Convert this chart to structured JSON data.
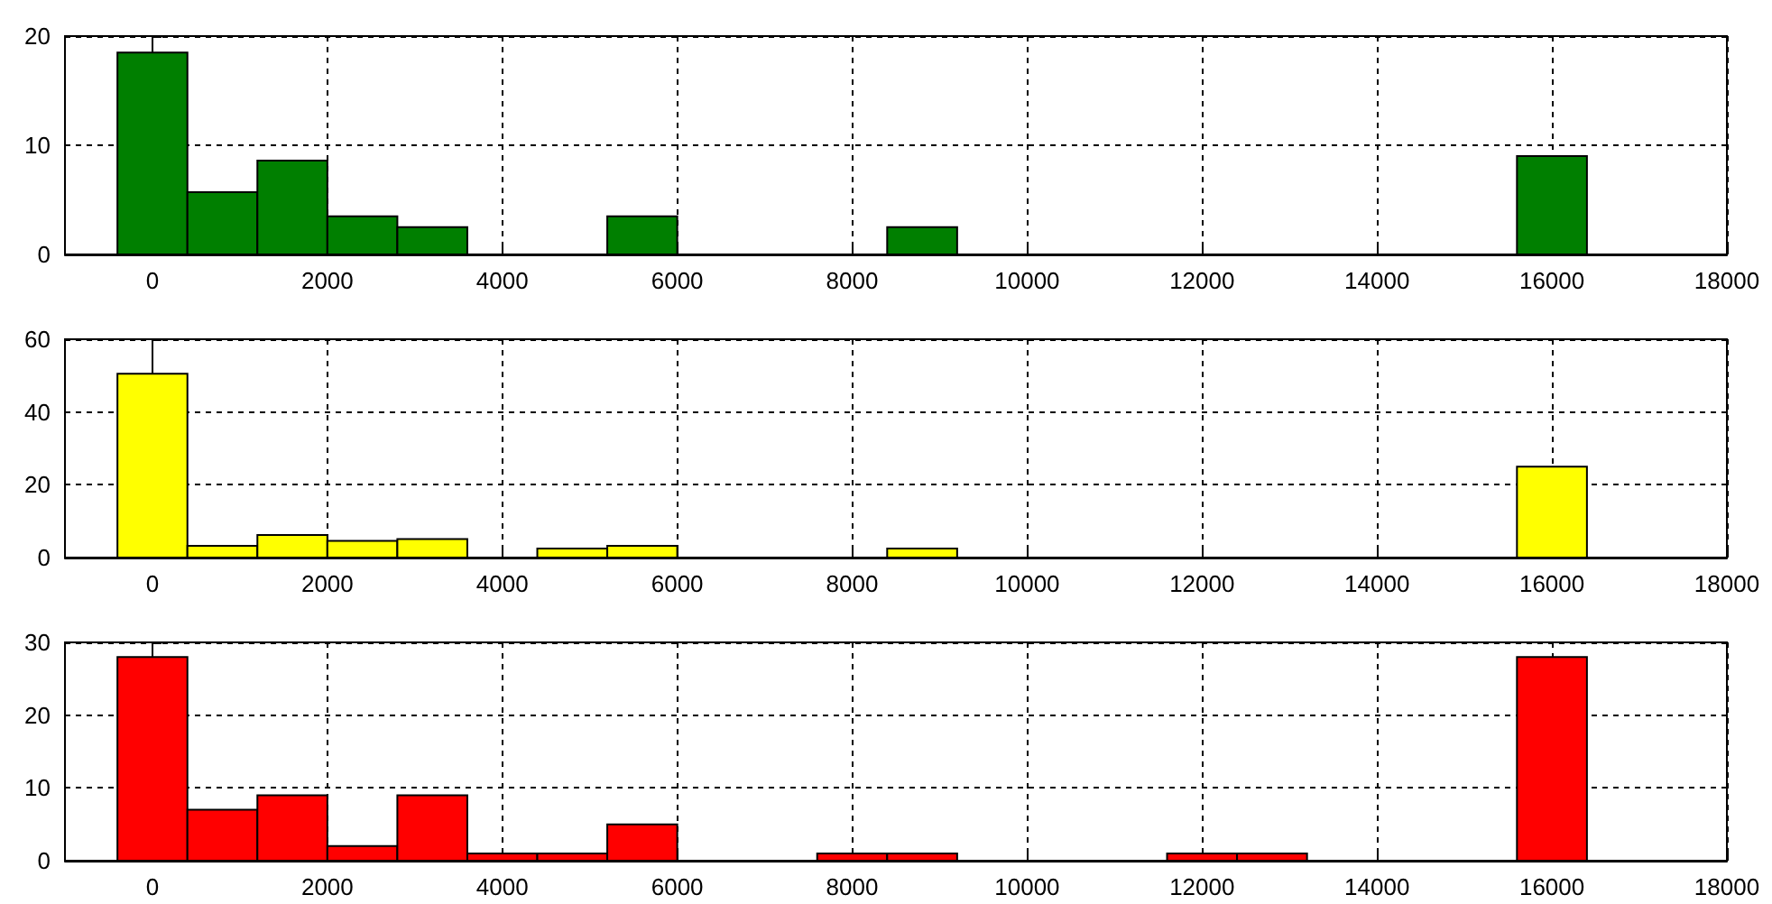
{
  "chart_data": [
    {
      "type": "histogram",
      "bins": [
        -400,
        400,
        1200,
        2000,
        2800,
        3600,
        4400,
        5200,
        6000,
        6800,
        7600,
        8400,
        9200,
        10000,
        10800,
        11600,
        12400,
        13200,
        14000,
        14800,
        15600,
        16400
      ],
      "values": [
        18.5,
        5.7,
        8.6,
        3.5,
        2.5,
        0,
        0,
        3.5,
        0,
        0,
        0,
        2.5,
        0,
        0,
        0,
        0,
        0,
        0,
        0,
        0,
        9
      ],
      "color": "#007f00",
      "xlim": [
        -1000,
        18000
      ],
      "xticks": [
        0,
        2000,
        4000,
        6000,
        8000,
        10000,
        12000,
        14000,
        16000,
        18000
      ],
      "ylim": [
        0,
        20
      ],
      "yticks": [
        0,
        10,
        20
      ],
      "grid": true
    },
    {
      "type": "histogram",
      "bins": [
        -400,
        400,
        1200,
        2000,
        2800,
        3600,
        4400,
        5200,
        6000,
        6800,
        7600,
        8400,
        9200,
        10000,
        10800,
        11600,
        12400,
        13200,
        14000,
        14800,
        15600,
        16400
      ],
      "values": [
        50.5,
        3.2,
        6.2,
        4.6,
        5.1,
        0,
        2.5,
        3.2,
        0,
        0,
        0,
        2.5,
        0,
        0,
        0,
        0,
        0,
        0,
        0,
        0,
        25
      ],
      "color": "#ffff00",
      "xlim": [
        -1000,
        18000
      ],
      "xticks": [
        0,
        2000,
        4000,
        6000,
        8000,
        10000,
        12000,
        14000,
        16000,
        18000
      ],
      "ylim": [
        0,
        60
      ],
      "yticks": [
        0,
        20,
        40,
        60
      ],
      "grid": true
    },
    {
      "type": "histogram",
      "bins": [
        -400,
        400,
        1200,
        2000,
        2800,
        3600,
        4400,
        5200,
        6000,
        6800,
        7600,
        8400,
        9200,
        10000,
        10800,
        11600,
        12400,
        13200,
        14000,
        14800,
        15600,
        16400
      ],
      "values": [
        28,
        7,
        9,
        2,
        9,
        1,
        1,
        5,
        0,
        0,
        1,
        1,
        0,
        0,
        0,
        1,
        1,
        0,
        0,
        0,
        28
      ],
      "color": "#ff0000",
      "xlim": [
        -1000,
        18000
      ],
      "xticks": [
        0,
        2000,
        4000,
        6000,
        8000,
        10000,
        12000,
        14000,
        16000,
        18000
      ],
      "ylim": [
        0,
        30
      ],
      "yticks": [
        0,
        10,
        20,
        30
      ],
      "grid": true
    }
  ]
}
